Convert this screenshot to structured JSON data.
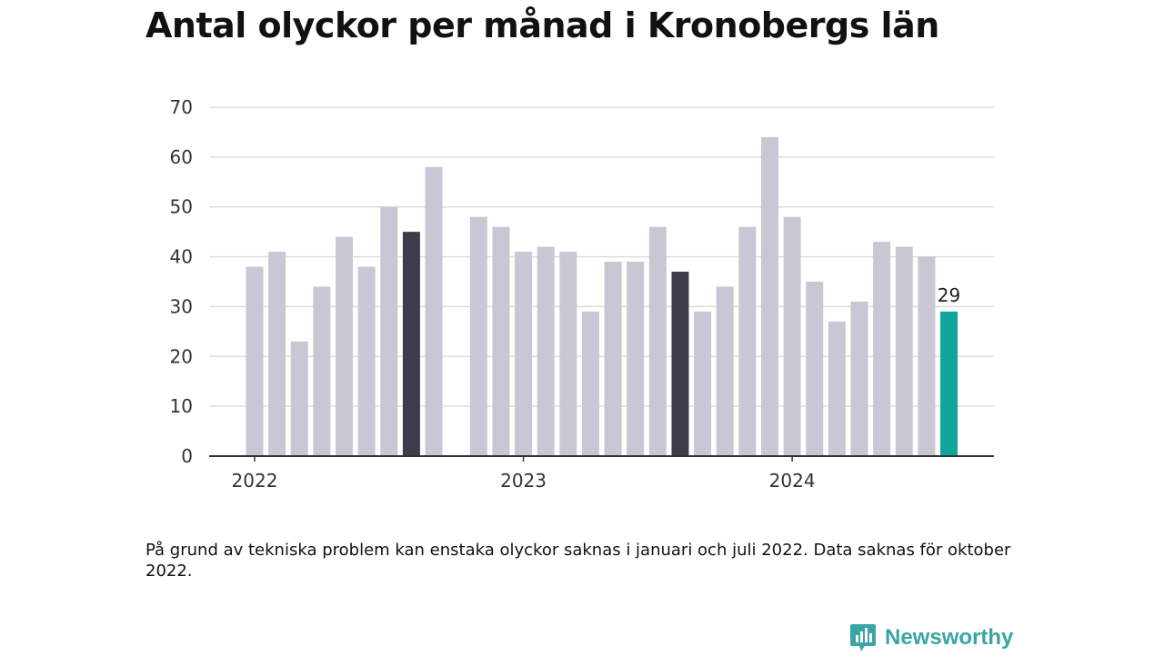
{
  "header": {
    "title": "Antal olyckor per månad i Kronobergs län"
  },
  "chart_data": {
    "type": "bar",
    "title": "Antal olyckor per månad i Kronobergs län",
    "xlabel": "",
    "ylabel": "",
    "ylim": [
      0,
      70
    ],
    "yticks": [
      "0",
      "10",
      "20",
      "30",
      "40",
      "50",
      "60",
      "70"
    ],
    "xticks": [
      {
        "label": "2022",
        "index": 0
      },
      {
        "label": "2023",
        "index": 12
      },
      {
        "label": "2024",
        "index": 24
      }
    ],
    "grid": true,
    "categories": [
      "2022-01",
      "2022-02",
      "2022-03",
      "2022-04",
      "2022-05",
      "2022-06",
      "2022-07",
      "2022-08",
      "2022-09",
      "2022-10",
      "2022-11",
      "2022-12",
      "2023-01",
      "2023-02",
      "2023-03",
      "2023-04",
      "2023-05",
      "2023-06",
      "2023-07",
      "2023-08",
      "2023-09",
      "2023-10",
      "2023-11",
      "2023-12",
      "2024-01",
      "2024-02",
      "2024-03",
      "2024-04",
      "2024-05",
      "2024-06",
      "2024-07",
      "2024-08",
      "2024-09",
      "2024-10",
      "2024-11",
      "2024-12"
    ],
    "values": [
      38,
      41,
      23,
      34,
      44,
      38,
      50,
      45,
      58,
      null,
      48,
      46,
      41,
      42,
      41,
      29,
      39,
      39,
      46,
      37,
      29,
      34,
      46,
      64,
      48,
      35,
      27,
      31,
      43,
      42,
      40,
      29,
      null,
      null,
      null,
      null
    ],
    "highlight": {
      "2022-08": "dark",
      "2023-08": "dark",
      "2024-08": "latest"
    },
    "data_labels": [
      {
        "category": "2024-08",
        "text": "29"
      }
    ],
    "colors": {
      "default": "#c8c7d3",
      "dark": "#3d3c4a",
      "latest": "#0fa59a",
      "grid": "#dddddd",
      "axis": "#333333"
    }
  },
  "footer": {
    "note": "På grund av tekniska problem kan enstaka olyckor saknas i januari och juli 2022. Data saknas för oktober 2022.",
    "brand": "Newsworthy",
    "brand_color": "#3aa5a3"
  }
}
